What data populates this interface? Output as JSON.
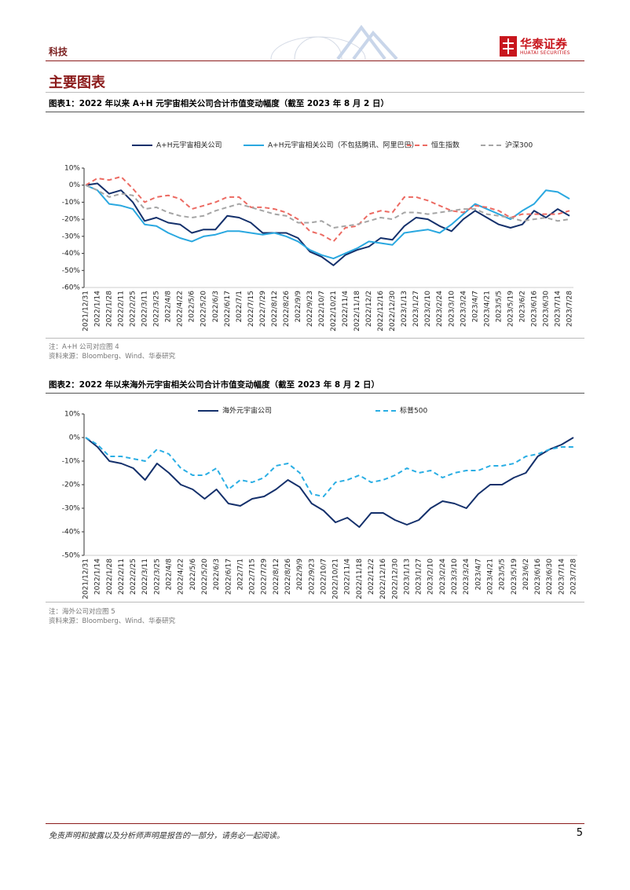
{
  "header": {
    "section": "科技",
    "brand": "华泰证券",
    "brand_en": "HUATAI SECURITIES"
  },
  "heading": "主要图表",
  "chart_data": [
    {
      "type": "line",
      "title": "图表1：2022 年以来 A+H 元宇宙相关公司合计市值变动幅度（截至 2023 年 8 月 2 日）",
      "categories": [
        "2021/12/31",
        "2022/1/14",
        "2022/1/28",
        "2022/2/11",
        "2022/2/25",
        "2022/3/11",
        "2022/3/25",
        "2022/4/8",
        "2022/4/22",
        "2022/5/6",
        "2022/5/20",
        "2022/6/3",
        "2022/6/17",
        "2022/7/1",
        "2022/7/15",
        "2022/7/29",
        "2022/8/12",
        "2022/8/26",
        "2022/9/9",
        "2022/9/23",
        "2022/10/7",
        "2022/10/21",
        "2022/11/4",
        "2022/11/18",
        "2022/12/2",
        "2022/12/16",
        "2022/12/30",
        "2023/1/13",
        "2023/1/27",
        "2023/2/10",
        "2023/2/24",
        "2023/3/10",
        "2023/3/24",
        "2023/4/7",
        "2023/4/21",
        "2023/5/5",
        "2023/5/19",
        "2023/6/2",
        "2023/6/16",
        "2023/6/30",
        "2023/7/14",
        "2023/7/28"
      ],
      "series": [
        {
          "name": "A+H元宇宙相关公司",
          "color": "#14306b",
          "dash": false,
          "values": [
            0,
            1,
            -5,
            -3,
            -10,
            -21,
            -19,
            -22,
            -23,
            -28,
            -26,
            -26,
            -18,
            -19,
            -22,
            -28,
            -28,
            -28,
            -31,
            -39,
            -42,
            -47,
            -41,
            -38,
            -36,
            -31,
            -32,
            -24,
            -19,
            -20,
            -24,
            -27,
            -20,
            -15,
            -19,
            -23,
            -25,
            -23,
            -15,
            -19,
            -14,
            -18
          ]
        },
        {
          "name": "A+H元宇宙相关公司（不包括腾讯、阿里巴巴）",
          "color": "#2aa8e0",
          "dash": false,
          "values": [
            0,
            -3,
            -11,
            -12,
            -14,
            -23,
            -24,
            -28,
            -31,
            -33,
            -30,
            -29,
            -27,
            -27,
            -28,
            -29,
            -28,
            -30,
            -33,
            -38,
            -41,
            -43,
            -40,
            -37,
            -33,
            -34,
            -35,
            -28,
            -27,
            -26,
            -28,
            -23,
            -17,
            -11,
            -14,
            -17,
            -20,
            -15,
            -11,
            -3,
            -4,
            -8
          ]
        },
        {
          "name": "恒生指数",
          "color": "#ec6a62",
          "dash": true,
          "values": [
            0,
            4,
            3,
            5,
            -2,
            -10,
            -7,
            -6,
            -8,
            -14,
            -12,
            -10,
            -7,
            -7,
            -13,
            -13,
            -14,
            -16,
            -20,
            -27,
            -29,
            -33,
            -25,
            -24,
            -17,
            -15,
            -16,
            -7,
            -7,
            -9,
            -12,
            -15,
            -16,
            -12,
            -13,
            -15,
            -19,
            -17,
            -17,
            -17,
            -17,
            -15
          ]
        },
        {
          "name": "沪深300",
          "color": "#a5a5a5",
          "dash": true,
          "values": [
            0,
            -3,
            -7,
            -5,
            -6,
            -14,
            -13,
            -16,
            -18,
            -19,
            -18,
            -15,
            -13,
            -11,
            -13,
            -15,
            -17,
            -18,
            -22,
            -22,
            -21,
            -25,
            -24,
            -23,
            -21,
            -19,
            -20,
            -16,
            -16,
            -17,
            -16,
            -15,
            -14,
            -14,
            -17,
            -18,
            -19,
            -21,
            -20,
            -19,
            -21,
            -20
          ]
        }
      ],
      "ylim": [
        -60,
        10
      ],
      "yticks": [
        {
          "value": 10,
          "label": "10%"
        },
        {
          "value": 0,
          "label": "0%"
        },
        {
          "value": -10,
          "label": "-10%"
        },
        {
          "value": -20,
          "label": "-20%"
        },
        {
          "value": -30,
          "label": "-30%"
        },
        {
          "value": -40,
          "label": "-40%"
        },
        {
          "value": -50,
          "label": "-50%"
        },
        {
          "value": -60,
          "label": "-60%"
        }
      ],
      "legend": "top",
      "note": "注：A+H 公司对应图 4",
      "source": "资料来源：Bloomberg、Wind、华泰研究"
    },
    {
      "type": "line",
      "title": "图表2：2022 年以来海外元宇宙相关公司合计市值变动幅度（截至 2023 年 8 月 2 日）",
      "categories": [
        "2021/12/31",
        "2022/1/14",
        "2022/1/28",
        "2022/2/11",
        "2022/2/25",
        "2022/3/11",
        "2022/3/25",
        "2022/4/8",
        "2022/4/22",
        "2022/5/6",
        "2022/5/20",
        "2022/6/3",
        "2022/6/17",
        "2022/7/1",
        "2022/7/15",
        "2022/7/29",
        "2022/8/12",
        "2022/8/26",
        "2022/9/9",
        "2022/9/23",
        "2022/10/7",
        "2022/10/21",
        "2022/11/4",
        "2022/11/18",
        "2022/12/2",
        "2022/12/16",
        "2022/12/30",
        "2023/1/13",
        "2023/1/27",
        "2023/2/10",
        "2023/2/24",
        "2023/3/10",
        "2023/3/24",
        "2023/4/7",
        "2023/4/21",
        "2023/5/5",
        "2023/5/19",
        "2023/6/2",
        "2023/6/16",
        "2023/6/30",
        "2023/7/14",
        "2023/7/28"
      ],
      "series": [
        {
          "name": "海外元宇宙公司",
          "color": "#14306b",
          "dash": false,
          "values": [
            0,
            -4,
            -10,
            -11,
            -13,
            -18,
            -11,
            -15,
            -20,
            -22,
            -26,
            -22,
            -28,
            -29,
            -26,
            -25,
            -22,
            -18,
            -21,
            -28,
            -31,
            -36,
            -34,
            -38,
            -32,
            -32,
            -35,
            -37,
            -35,
            -30,
            -27,
            -28,
            -30,
            -24,
            -20,
            -20,
            -17,
            -15,
            -8,
            -5,
            -3,
            0
          ]
        },
        {
          "name": "标普500",
          "color": "#2aaee4",
          "dash": true,
          "values": [
            0,
            -3,
            -8,
            -8,
            -9,
            -10,
            -5,
            -7,
            -13,
            -16,
            -16,
            -13,
            -22,
            -18,
            -19,
            -17,
            -12,
            -11,
            -15,
            -24,
            -25,
            -19,
            -18,
            -16,
            -19,
            -18,
            -16,
            -13,
            -15,
            -14,
            -17,
            -15,
            -14,
            -14,
            -12,
            -12,
            -11,
            -8,
            -7,
            -5,
            -4,
            -4
          ]
        }
      ],
      "ylim": [
        -50,
        10
      ],
      "yticks": [
        {
          "value": 10,
          "label": "10%"
        },
        {
          "value": 0,
          "label": "0%"
        },
        {
          "value": -10,
          "label": "-10%"
        },
        {
          "value": -20,
          "label": "-20%"
        },
        {
          "value": -30,
          "label": "-30%"
        },
        {
          "value": -40,
          "label": "-40%"
        },
        {
          "value": -50,
          "label": "-50%"
        }
      ],
      "legend": "top",
      "note": "注：海外公司对应图 5",
      "source": "资料来源：Bloomberg、Wind、华泰研究"
    }
  ],
  "footer": {
    "disclaimer": "免责声明和披露以及分析师声明是报告的一部分，请务必一起阅读。",
    "page": "5"
  }
}
